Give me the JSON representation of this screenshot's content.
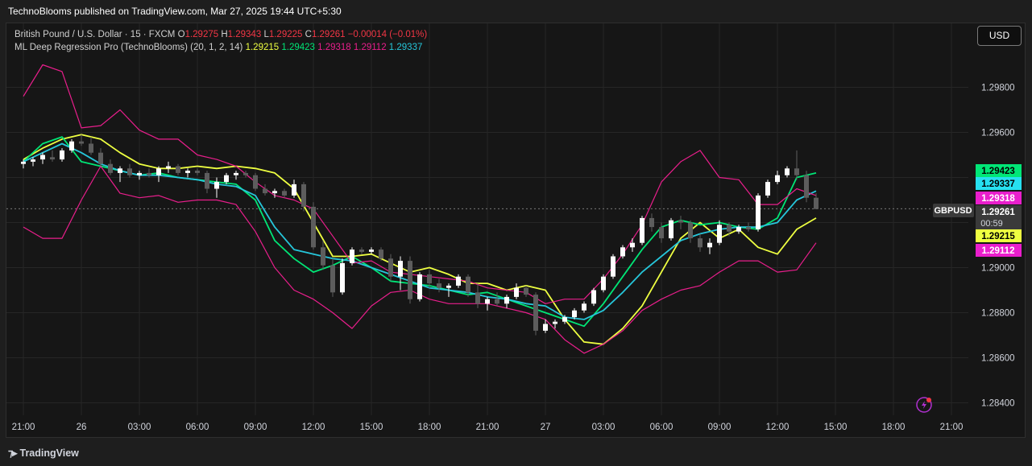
{
  "header": {
    "publisher_line": "TechnoBlooms published on TradingView.com, Mar 27, 2025 19:44 UTC+5:30"
  },
  "legend": {
    "symbol_desc": "British Pound / U.S. Dollar · 15 · FXCM",
    "o_label": "O",
    "o_value": "1.29275",
    "h_label": "H",
    "h_value": "1.29343",
    "l_label": "L",
    "l_value": "1.29225",
    "c_label": "C",
    "c_value": "1.29261",
    "change": "−0.00014 (−0.01%)",
    "indicator_name": "ML Deep Regression Pro (TechnoBlooms) (20, 1, 2, 14)",
    "indicator_values": [
      {
        "value": "1.29215",
        "color": "#eeff41"
      },
      {
        "value": "1.29423",
        "color": "#00e676"
      },
      {
        "value": "1.29318",
        "color": "#e91e8c"
      },
      {
        "value": "1.29112",
        "color": "#e91e8c"
      },
      {
        "value": "1.29337",
        "color": "#26c6da"
      }
    ]
  },
  "currency_button": "USD",
  "footer": {
    "brand": "TradingView"
  },
  "price_labels": [
    {
      "value": "1.29423",
      "bg": "#00e676",
      "fg": "#000000"
    },
    {
      "value": "1.29337",
      "bg": "#26e0f0",
      "fg": "#000000"
    },
    {
      "value": "1.29318",
      "bg": "#e91ecc",
      "fg": "#ffffff"
    },
    {
      "value": "1.29261",
      "bg": "#3a3a3a",
      "fg": "#ffffff",
      "sub": "00:59",
      "tag": "GBPUSD"
    },
    {
      "value": "1.29215",
      "bg": "#eeff41",
      "fg": "#000000"
    },
    {
      "value": "1.29112",
      "bg": "#e91ecc",
      "fg": "#ffffff"
    }
  ],
  "chart_data": {
    "type": "candlestick",
    "symbol": "GBPUSD",
    "interval": "15",
    "ylim": [
      1.2836,
      1.2994
    ],
    "y_ticks": [
      "1.29800",
      "1.29600",
      "1.29400",
      "1.29200",
      "1.29000",
      "1.28800",
      "1.28600",
      "1.28400"
    ],
    "x_ticks": [
      "21:00",
      "26",
      "03:00",
      "06:00",
      "09:00",
      "12:00",
      "15:00",
      "18:00",
      "21:00",
      "27",
      "03:00",
      "06:00",
      "09:00",
      "12:00",
      "15:00",
      "18:00",
      "21:00"
    ],
    "x_tick_hours": [
      0,
      3,
      6,
      9,
      12,
      15,
      18,
      21,
      24,
      27,
      30,
      33,
      36,
      39,
      42,
      45,
      48
    ],
    "last_price": 1.29261,
    "candles_hourly": [
      [
        0.0,
        1.2946,
        1.2948,
        1.2944,
        1.2947
      ],
      [
        0.5,
        1.2947,
        1.2949,
        1.2945,
        1.2948
      ],
      [
        1.0,
        1.2948,
        1.2951,
        1.2946,
        1.295
      ],
      [
        1.5,
        1.2949,
        1.2952,
        1.2947,
        1.2948
      ],
      [
        2.0,
        1.2948,
        1.2953,
        1.2947,
        1.2952
      ],
      [
        2.5,
        1.2952,
        1.2957,
        1.2951,
        1.2956
      ],
      [
        3.0,
        1.2956,
        1.2959,
        1.2954,
        1.2955
      ],
      [
        3.5,
        1.2955,
        1.2958,
        1.295,
        1.2951
      ],
      [
        4.0,
        1.2951,
        1.2953,
        1.2945,
        1.2946
      ],
      [
        4.5,
        1.2946,
        1.2948,
        1.2941,
        1.2942
      ],
      [
        5.0,
        1.2942,
        1.2945,
        1.2938,
        1.2944
      ],
      [
        5.5,
        1.2944,
        1.2946,
        1.294,
        1.2941
      ],
      [
        6.0,
        1.2941,
        1.2943,
        1.2939,
        1.2942
      ],
      [
        6.5,
        1.2942,
        1.2944,
        1.294,
        1.2941
      ],
      [
        7.0,
        1.2941,
        1.2945,
        1.2938,
        1.2944
      ],
      [
        7.5,
        1.2944,
        1.2947,
        1.2942,
        1.2945
      ],
      [
        8.0,
        1.2945,
        1.2946,
        1.2941,
        1.2942
      ],
      [
        8.5,
        1.2942,
        1.2944,
        1.294,
        1.2943
      ],
      [
        9.0,
        1.2943,
        1.2944,
        1.2941,
        1.2942
      ],
      [
        9.5,
        1.2942,
        1.2943,
        1.2933,
        1.2935
      ],
      [
        10.0,
        1.2935,
        1.294,
        1.2931,
        1.2938
      ],
      [
        10.5,
        1.2938,
        1.2942,
        1.2937,
        1.2941
      ],
      [
        11.0,
        1.2941,
        1.2943,
        1.2939,
        1.2942
      ],
      [
        11.5,
        1.2942,
        1.2943,
        1.294,
        1.2941
      ],
      [
        12.0,
        1.2941,
        1.2942,
        1.2934,
        1.2935
      ],
      [
        12.5,
        1.2935,
        1.2937,
        1.2932,
        1.2933
      ],
      [
        13.0,
        1.2933,
        1.2935,
        1.2931,
        1.2934
      ],
      [
        13.5,
        1.2934,
        1.2935,
        1.2931,
        1.2932
      ],
      [
        14.0,
        1.2932,
        1.2939,
        1.2931,
        1.2937
      ],
      [
        14.5,
        1.2937,
        1.2938,
        1.2925,
        1.2927
      ],
      [
        15.0,
        1.2927,
        1.2929,
        1.2908,
        1.2909
      ],
      [
        15.5,
        1.2909,
        1.2912,
        1.2899,
        1.2901
      ],
      [
        16.0,
        1.2901,
        1.2904,
        1.2887,
        1.2889
      ],
      [
        16.5,
        1.2889,
        1.2904,
        1.2888,
        1.2902
      ],
      [
        17.0,
        1.2902,
        1.2909,
        1.2901,
        1.2908
      ],
      [
        17.5,
        1.2908,
        1.2909,
        1.2906,
        1.2907
      ],
      [
        18.0,
        1.2907,
        1.2909,
        1.2906,
        1.2908
      ],
      [
        18.5,
        1.2908,
        1.2909,
        1.2903,
        1.2904
      ],
      [
        19.0,
        1.2904,
        1.2906,
        1.2894,
        1.2896
      ],
      [
        19.5,
        1.2896,
        1.2905,
        1.289,
        1.2903
      ],
      [
        20.0,
        1.2903,
        1.2905,
        1.2884,
        1.2886
      ],
      [
        20.5,
        1.2886,
        1.2898,
        1.2885,
        1.2897
      ],
      [
        21.0,
        1.2897,
        1.2899,
        1.2891,
        1.2893
      ],
      [
        21.5,
        1.2893,
        1.2895,
        1.2889,
        1.2891
      ],
      [
        22.0,
        1.2891,
        1.2893,
        1.2887,
        1.2892
      ],
      [
        22.5,
        1.2892,
        1.2897,
        1.2891,
        1.2896
      ],
      [
        23.0,
        1.2896,
        1.2897,
        1.2887,
        1.2889
      ],
      [
        23.5,
        1.2889,
        1.2893,
        1.2882,
        1.2884
      ],
      [
        24.0,
        1.2884,
        1.2887,
        1.2881,
        1.2886
      ],
      [
        24.5,
        1.2886,
        1.2889,
        1.2883,
        1.2884
      ],
      [
        25.0,
        1.2884,
        1.2888,
        1.2882,
        1.2887
      ],
      [
        25.5,
        1.2887,
        1.2893,
        1.2886,
        1.2891
      ],
      [
        26.0,
        1.2891,
        1.2892,
        1.2887,
        1.2888
      ],
      [
        26.5,
        1.2888,
        1.2889,
        1.287,
        1.2872
      ],
      [
        27.0,
        1.2872,
        1.2877,
        1.2871,
        1.2875
      ],
      [
        27.5,
        1.2875,
        1.2877,
        1.2873,
        1.2876
      ],
      [
        28.0,
        1.2876,
        1.2879,
        1.2875,
        1.2878
      ],
      [
        28.5,
        1.2878,
        1.2882,
        1.2877,
        1.2881
      ],
      [
        29.0,
        1.2881,
        1.2885,
        1.288,
        1.2884
      ],
      [
        29.5,
        1.2884,
        1.2891,
        1.2883,
        1.289
      ],
      [
        30.0,
        1.289,
        1.2897,
        1.2889,
        1.2896
      ],
      [
        30.5,
        1.2896,
        1.2906,
        1.2895,
        1.2905
      ],
      [
        31.0,
        1.2905,
        1.291,
        1.2904,
        1.2909
      ],
      [
        31.5,
        1.2909,
        1.2913,
        1.2907,
        1.2911
      ],
      [
        32.0,
        1.2911,
        1.2923,
        1.291,
        1.2922
      ],
      [
        32.5,
        1.2922,
        1.2924,
        1.2916,
        1.2918
      ],
      [
        33.0,
        1.2918,
        1.292,
        1.2911,
        1.2913
      ],
      [
        33.5,
        1.2913,
        1.2922,
        1.2912,
        1.2921
      ],
      [
        34.0,
        1.2921,
        1.2923,
        1.2917,
        1.292
      ],
      [
        34.5,
        1.292,
        1.2921,
        1.2911,
        1.2913
      ],
      [
        35.0,
        1.2913,
        1.2915,
        1.2907,
        1.2909
      ],
      [
        35.5,
        1.2909,
        1.2913,
        1.2906,
        1.2911
      ],
      [
        36.0,
        1.2911,
        1.2921,
        1.291,
        1.2919
      ],
      [
        36.5,
        1.2919,
        1.292,
        1.2914,
        1.2916
      ],
      [
        37.0,
        1.2916,
        1.2919,
        1.2915,
        1.2918
      ],
      [
        37.5,
        1.2918,
        1.292,
        1.2916,
        1.2917
      ],
      [
        38.0,
        1.2917,
        1.2933,
        1.2916,
        1.2932
      ],
      [
        38.5,
        1.2932,
        1.2939,
        1.2931,
        1.2938
      ],
      [
        39.0,
        1.2938,
        1.2943,
        1.2937,
        1.2941
      ],
      [
        39.5,
        1.2941,
        1.2945,
        1.294,
        1.2944
      ],
      [
        40.0,
        1.2944,
        1.2952,
        1.2939,
        1.2941
      ],
      [
        40.5,
        1.2941,
        1.2943,
        1.2929,
        1.2931
      ],
      [
        41.0,
        1.2931,
        1.2933,
        1.2926,
        1.2926
      ]
    ],
    "series": [
      {
        "name": "1.29215",
        "color": "#eeff41",
        "values": [
          1.2948,
          1.2953,
          1.2957,
          1.2959,
          1.2957,
          1.2951,
          1.2946,
          1.2944,
          1.2944,
          1.2945,
          1.2944,
          1.2945,
          1.2944,
          1.2942,
          1.2935,
          1.292,
          1.2905,
          1.2905,
          1.2906,
          1.2902,
          1.2898,
          1.29,
          1.2897,
          1.2893,
          1.2893,
          1.289,
          1.2892,
          1.289,
          1.2877,
          1.2867,
          1.2866,
          1.2873,
          1.2883,
          1.2898,
          1.2913,
          1.292,
          1.2913,
          1.2917,
          1.2909,
          1.2906,
          1.2917,
          1.2922
        ]
      },
      {
        "name": "1.29423",
        "color": "#00e676",
        "values": [
          1.2947,
          1.2955,
          1.2958,
          1.2947,
          1.2945,
          1.2943,
          1.2941,
          1.2942,
          1.294,
          1.2939,
          1.2938,
          1.2937,
          1.293,
          1.2912,
          1.2904,
          1.2898,
          1.2901,
          1.2905,
          1.29,
          1.2894,
          1.2893,
          1.2892,
          1.289,
          1.2888,
          1.2889,
          1.2886,
          1.2883,
          1.288,
          1.2877,
          1.2874,
          1.2884,
          1.2896,
          1.2908,
          1.2918,
          1.2921,
          1.2919,
          1.292,
          1.2918,
          1.2917,
          1.2922,
          1.294,
          1.2942
        ]
      },
      {
        "name": "1.29337",
        "color": "#26c6da",
        "values": [
          1.2947,
          1.2951,
          1.2955,
          1.2951,
          1.2946,
          1.2943,
          1.2941,
          1.2941,
          1.294,
          1.2939,
          1.2937,
          1.2936,
          1.2932,
          1.2918,
          1.2908,
          1.2906,
          1.2904,
          1.2903,
          1.29,
          1.2897,
          1.2894,
          1.2891,
          1.289,
          1.2889,
          1.2887,
          1.2886,
          1.2884,
          1.2883,
          1.2878,
          1.2877,
          1.2881,
          1.2889,
          1.2898,
          1.2905,
          1.2912,
          1.2915,
          1.2917,
          1.2918,
          1.2918,
          1.292,
          1.293,
          1.2934
        ]
      },
      {
        "name": "1.29318",
        "color": "#e91e8c",
        "values": [
          1.2976,
          1.299,
          1.2987,
          1.2962,
          1.2963,
          1.297,
          1.2961,
          1.2957,
          1.2957,
          1.295,
          1.2948,
          1.2945,
          1.2938,
          1.2932,
          1.293,
          1.2926,
          1.2914,
          1.2902,
          1.2903,
          1.2898,
          1.2897,
          1.2896,
          1.2895,
          1.2894,
          1.2891,
          1.289,
          1.2889,
          1.2884,
          1.2886,
          1.2886,
          1.2895,
          1.2906,
          1.2919,
          1.2938,
          1.2947,
          1.2952,
          1.294,
          1.2939,
          1.2928,
          1.2928,
          1.2935,
          1.2932
        ]
      },
      {
        "name": "1.29112",
        "color": "#e91e8c",
        "values": [
          1.2918,
          1.2913,
          1.2913,
          1.293,
          1.2945,
          1.2933,
          1.2931,
          1.2932,
          1.2929,
          1.293,
          1.293,
          1.2928,
          1.2916,
          1.29,
          1.289,
          1.2886,
          1.288,
          1.2873,
          1.2883,
          1.2889,
          1.289,
          1.2886,
          1.2884,
          1.2884,
          1.2884,
          1.2882,
          1.288,
          1.2877,
          1.2868,
          1.2862,
          1.2866,
          1.2872,
          1.2881,
          1.2886,
          1.289,
          1.2892,
          1.2898,
          1.2903,
          1.2903,
          1.2898,
          1.2899,
          1.2911
        ]
      }
    ],
    "series_hours": [
      0,
      1,
      2,
      3,
      4,
      5,
      6,
      7,
      8,
      9,
      10,
      11,
      12,
      13,
      14,
      15,
      16,
      17,
      18,
      19,
      20,
      21,
      22,
      23,
      24,
      25,
      26,
      27,
      28,
      29,
      30,
      31,
      32,
      33,
      34,
      35,
      36,
      37,
      38,
      39,
      40,
      41
    ]
  }
}
